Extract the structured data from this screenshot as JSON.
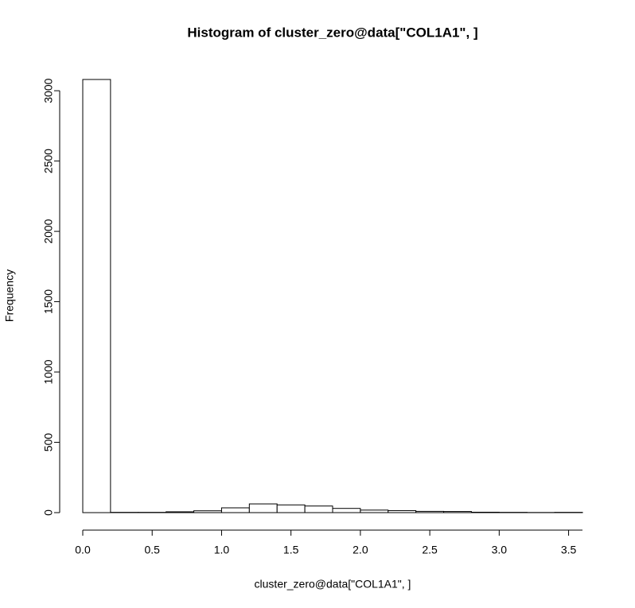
{
  "chart_data": {
    "type": "histogram",
    "title": "Histogram of cluster_zero@data[\"COL1A1\", ]",
    "x_label": "cluster_zero@data[\"COL1A1\", ]",
    "y_label": "Frequency",
    "bins": [
      0,
      0.2,
      0.4,
      0.6,
      0.8,
      1.0,
      1.2,
      1.4,
      1.6,
      1.8,
      2.0,
      2.2,
      2.4,
      2.6,
      2.8,
      3.0,
      3.2,
      3.4,
      3.6
    ],
    "values": [
      3080,
      2,
      2,
      6,
      13,
      34,
      62,
      55,
      47,
      30,
      18,
      14,
      9,
      8,
      3,
      2,
      1,
      2
    ],
    "color": "#ffffff",
    "xlim": [
      0,
      3.6
    ],
    "ylim": [
      0,
      3080
    ],
    "xticks": [
      {
        "value": 0,
        "label": "0.0"
      },
      0.5,
      {
        "value": 1,
        "label": "1.0"
      },
      1.5,
      {
        "value": 2,
        "label": "2.0"
      },
      2.5,
      {
        "value": 3,
        "label": "3.0"
      },
      3.5
    ],
    "yticks": [
      0,
      500,
      1000,
      1500,
      2000,
      2500,
      3000
    ]
  }
}
